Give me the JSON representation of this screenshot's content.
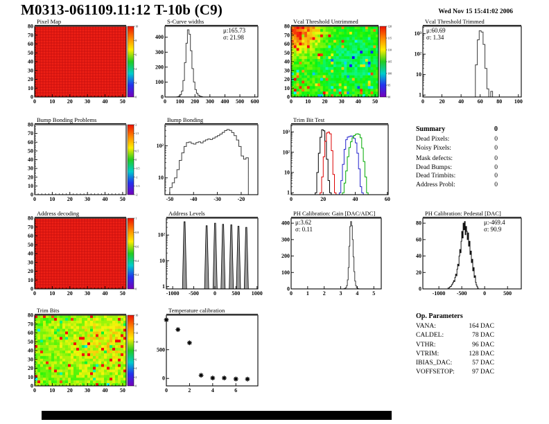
{
  "header": {
    "title": "M0313-061109.11:12 T-10b (C9)",
    "date": "Wed Nov 15 15:41:02 2006"
  },
  "summary": {
    "heading": "Summary",
    "heading_value": "0",
    "rows": [
      {
        "label": "Dead Pixels:",
        "value": "0"
      },
      {
        "label": "Noisy Pixels:",
        "value": "0"
      },
      {
        "label": "Mask defects:",
        "value": "0"
      },
      {
        "label": "Dead Bumps:",
        "value": "0"
      },
      {
        "label": "Dead Trimbits:",
        "value": "0"
      },
      {
        "label": "Address Probl:",
        "value": "0"
      }
    ]
  },
  "op_parameters": {
    "heading": "Op. Parameters",
    "rows": [
      {
        "label": "VANA:",
        "value": "164 DAC"
      },
      {
        "label": "CALDEL:",
        "value": "78 DAC"
      },
      {
        "label": "VTHR:",
        "value": "96 DAC"
      },
      {
        "label": "VTRIM:",
        "value": "128 DAC"
      },
      {
        "label": "IBIAS_DAC:",
        "value": "57 DAC"
      },
      {
        "label": "VOFFSETOP:",
        "value": "97 DAC"
      }
    ]
  },
  "chart_data": [
    {
      "id": "pixel-map",
      "title": "Pixel Map",
      "type": "heatmap_uniform",
      "frame": {
        "x": 50,
        "y": 38,
        "w": 132,
        "h": 102
      },
      "xrange": [
        0,
        52
      ],
      "xticks": [
        0,
        10,
        20,
        30,
        40,
        50
      ],
      "yrange": [
        0,
        80
      ],
      "yticks": [
        0,
        10,
        20,
        30,
        40,
        50,
        60,
        70,
        80
      ],
      "colorbar": {
        "labels": [
          "10",
          "8",
          "6",
          "4",
          "2",
          "0"
        ]
      }
    },
    {
      "id": "s-curve-widths",
      "title": "S-Curve widths",
      "type": "hist",
      "frame": {
        "x": 238,
        "y": 38,
        "w": 134,
        "h": 102
      },
      "xrange": [
        0,
        620
      ],
      "xticks": [
        0,
        100,
        200,
        300,
        400,
        500,
        600
      ],
      "yrange": [
        0,
        473
      ],
      "yticks": [
        0,
        100,
        200,
        300,
        400
      ],
      "bins": {
        "start": 80,
        "width": 10,
        "values": [
          2,
          6,
          15,
          40,
          110,
          230,
          360,
          450,
          420,
          310,
          190,
          100,
          50,
          25,
          12,
          6,
          3
        ]
      },
      "stats": [
        "μ:165.73",
        "σ: 21.98"
      ]
    },
    {
      "id": "vcal-threshold-untrimmed",
      "title": "Vcal Threshold Untrimmed",
      "type": "heatmap_noise",
      "frame": {
        "x": 420,
        "y": 38,
        "w": 126,
        "h": 102
      },
      "xrange": [
        0,
        52
      ],
      "xticks": [
        0,
        10,
        20,
        30,
        40,
        50
      ],
      "yrange": [
        0,
        80
      ],
      "yticks": [
        0,
        10,
        20,
        30,
        40,
        50,
        60,
        70,
        80
      ],
      "seed": 12,
      "base": 0.58,
      "noise": 0.07,
      "hot": 0.05,
      "cold": 0.04,
      "spots": [
        {
          "x": 0.05,
          "y": 0.05,
          "r": 0.22,
          "amt": 0.3
        },
        {
          "x": 0.68,
          "y": 0.45,
          "r": 0.3,
          "amt": -0.13
        }
      ],
      "colorbar": {
        "labels": [
          "120",
          "115",
          "110",
          "105",
          "100",
          "95",
          "90"
        ]
      }
    },
    {
      "id": "vcal-threshold-trimmed",
      "title": "Vcal Threshold Trimmed",
      "type": "hist",
      "frame": {
        "x": 610,
        "y": 38,
        "w": 142,
        "h": 102
      },
      "xrange": [
        0,
        103
      ],
      "xticks": [
        0,
        20,
        40,
        60,
        80,
        100
      ],
      "ylog": [
        0.8,
        2300
      ],
      "ylogticks": [
        [
          1,
          "1"
        ],
        [
          10,
          "10"
        ],
        [
          100,
          "10²"
        ],
        [
          1000,
          "10³"
        ]
      ],
      "bins": {
        "start": 55,
        "width": 2,
        "values": [
          30,
          500,
          1400,
          1200,
          300,
          20,
          2,
          0,
          1.5
        ]
      },
      "stats": [
        "μ:60.69",
        "σ: 1.34"
      ]
    },
    {
      "id": "bump-bonding-problems",
      "title": "Bump Bonding Problems",
      "type": "heatmap_empty",
      "frame": {
        "x": 50,
        "y": 180,
        "w": 132,
        "h": 101
      },
      "xrange": [
        0,
        52
      ],
      "xticks": [
        0,
        10,
        20,
        30,
        40,
        50
      ],
      "yrange": [
        0,
        80
      ],
      "yticks": [
        0,
        10,
        20,
        30,
        40,
        50,
        60,
        70,
        80
      ],
      "colorbar": {
        "labels": [
          "2",
          "1.5",
          "1",
          "0.5",
          "0",
          "-0.5",
          "-1",
          "-1.5",
          "-2"
        ]
      }
    },
    {
      "id": "bump-bonding",
      "title": "Bump Bonding",
      "type": "hist",
      "frame": {
        "x": 238,
        "y": 180,
        "w": 134,
        "h": 101
      },
      "xrange": [
        -52,
        -13
      ],
      "xticks": [
        -50,
        -40,
        -30,
        -20
      ],
      "ylog": [
        3,
        450
      ],
      "ylogticks": [
        [
          10,
          "10"
        ],
        [
          100,
          "10²"
        ]
      ],
      "bins": {
        "start": -50,
        "width": 1,
        "values": [
          5,
          7,
          10,
          18,
          35,
          60,
          95,
          125,
          130,
          118,
          112,
          125,
          132,
          122,
          138,
          152,
          162,
          156,
          172,
          188,
          205,
          230,
          260,
          295,
          320,
          298,
          255,
          205,
          150,
          95,
          48,
          38,
          42
        ]
      }
    },
    {
      "id": "trim-bit-test",
      "title": "Trim Bit Test",
      "type": "hist_multi",
      "frame": {
        "x": 420,
        "y": 180,
        "w": 140,
        "h": 101
      },
      "xrange": [
        0,
        60.5
      ],
      "xticks": [
        0,
        20,
        40,
        60
      ],
      "ylog": [
        0.8,
        2300
      ],
      "ylogticks": [
        [
          1,
          "1"
        ],
        [
          10,
          "10"
        ],
        [
          100,
          "10²"
        ],
        [
          1000,
          "10³"
        ]
      ],
      "series": [
        {
          "name": "trim-hist-black",
          "color": "#000000",
          "bins": {
            "start": 15,
            "width": 1,
            "values": [
              1,
              10,
              90,
              550,
              1300,
              1150,
              350,
              45,
              4,
              1
            ]
          }
        },
        {
          "name": "trim-hist-red",
          "color": "#dd0000",
          "bins": {
            "start": 18,
            "width": 1,
            "values": [
              1,
              6,
              60,
              350,
              900,
              1000,
              820,
              120,
              8,
              1
            ]
          }
        },
        {
          "name": "trim-hist-blue",
          "color": "#2222cc",
          "bins": {
            "start": 30,
            "width": 1,
            "values": [
              1,
              4,
              25,
              140,
              420,
              560,
              600,
              640,
              600,
              480,
              290,
              90,
              15,
              2,
              1
            ]
          }
        },
        {
          "name": "trim-hist-green",
          "color": "#00aa00",
          "bins": {
            "start": 32,
            "width": 1,
            "values": [
              1,
              3,
              12,
              60,
              170,
              330,
              520,
              680,
              780,
              820,
              760,
              520,
              160,
              35,
              6,
              1
            ]
          }
        }
      ]
    },
    {
      "id": "address-decoding",
      "title": "Address decoding",
      "type": "heatmap_uniform",
      "frame": {
        "x": 50,
        "y": 315,
        "w": 132,
        "h": 102
      },
      "xrange": [
        0,
        52
      ],
      "xticks": [
        0,
        10,
        20,
        30,
        40,
        50
      ],
      "yrange": [
        0,
        80
      ],
      "yticks": [
        0,
        10,
        20,
        30,
        40,
        50,
        60,
        70,
        80
      ],
      "colorbar": {
        "labels": [
          "1",
          "0.8",
          "0.6",
          "0.4",
          "0.2",
          "0"
        ]
      }
    },
    {
      "id": "address-levels",
      "title": "Address Levels",
      "type": "spikes",
      "frame": {
        "x": 240,
        "y": 315,
        "w": 132,
        "h": 102
      },
      "xrange": [
        -1150,
        1020
      ],
      "xticks": [
        -1000,
        -500,
        0,
        500,
        1000
      ],
      "ylog": [
        0.8,
        450
      ],
      "ylogticks": [
        [
          1,
          "1"
        ],
        [
          10,
          "10"
        ],
        [
          100,
          "10²"
        ]
      ],
      "spikes": [
        [
          -720,
          330
        ],
        [
          -195,
          230
        ],
        [
          5,
          290
        ],
        [
          195,
          260
        ],
        [
          390,
          250
        ],
        [
          560,
          220
        ],
        [
          745,
          200
        ]
      ]
    },
    {
      "id": "ph-calibration-gain",
      "title": "PH Calibration: Gain [DAC/ADC]",
      "type": "hist",
      "frame": {
        "x": 420,
        "y": 315,
        "w": 130,
        "h": 102
      },
      "xrange": [
        0,
        5.45
      ],
      "xticks": [
        0,
        1,
        2,
        3,
        4,
        5
      ],
      "yrange": [
        0,
        430
      ],
      "yticks": [
        0,
        100,
        200,
        300,
        400
      ],
      "bins": {
        "start": 3.2,
        "width": 0.05,
        "values": [
          2,
          4,
          8,
          20,
          55,
          130,
          260,
          380,
          410,
          385,
          300,
          195,
          105,
          48,
          20,
          8,
          3,
          1
        ]
      },
      "stats": [
        "μ:3.62",
        "σ: 0.11"
      ]
    },
    {
      "id": "ph-calibration-pedestal",
      "title": "PH Calibration: Pedestal [DAC]",
      "type": "hist",
      "jagged": true,
      "frame": {
        "x": 610,
        "y": 315,
        "w": 142,
        "h": 102
      },
      "xrange": [
        -1350,
        800
      ],
      "xticks": [
        -1000,
        -500,
        0,
        500
      ],
      "yrange": [
        0,
        86
      ],
      "yticks": [
        0,
        20,
        40,
        60,
        80
      ],
      "bins": {
        "start": -800,
        "width": 15,
        "values": [
          1,
          1,
          2,
          3,
          3,
          5,
          6,
          8,
          10,
          9,
          14,
          18,
          16,
          24,
          30,
          28,
          40,
          48,
          44,
          58,
          70,
          62,
          80,
          72,
          82,
          66,
          76,
          70,
          60,
          68,
          52,
          58,
          42,
          46,
          32,
          36,
          22,
          26,
          14,
          16,
          8,
          5,
          3,
          1
        ]
      },
      "stats": [
        "μ:-469.4",
        "σ: 90.9"
      ]
    },
    {
      "id": "trim-bits",
      "title": "Trim Bits",
      "type": "heatmap_noise",
      "frame": {
        "x": 50,
        "y": 455,
        "w": 132,
        "h": 102
      },
      "xrange": [
        0,
        52
      ],
      "xticks": [
        0,
        10,
        20,
        30,
        40,
        50
      ],
      "yrange": [
        0,
        80
      ],
      "yticks": [
        0,
        10,
        20,
        30,
        40,
        50,
        60,
        70,
        80
      ],
      "seed": 77,
      "base": 0.62,
      "noise": 0.07,
      "hot": 0.06,
      "cold": 0.02,
      "spots": [
        {
          "x": 0.75,
          "y": 0.35,
          "r": 0.38,
          "amt": 0.1
        }
      ],
      "colorbar": {
        "labels": [
          "16",
          "14",
          "12",
          "10",
          "8",
          "6",
          "4",
          "2",
          "0"
        ]
      }
    },
    {
      "id": "temperature-calibration",
      "title": "Temperature calibration",
      "type": "scatter_star",
      "frame": {
        "x": 240,
        "y": 455,
        "w": 132,
        "h": 102
      },
      "xrange": [
        0,
        7.9
      ],
      "xticks": [
        0,
        2,
        4,
        6
      ],
      "yrange": [
        -130,
        1100
      ],
      "yticks": [
        0,
        500
      ],
      "points": [
        [
          0,
          1020
        ],
        [
          1,
          850
        ],
        [
          2,
          620
        ],
        [
          3,
          55
        ],
        [
          4,
          8
        ],
        [
          5,
          8
        ],
        [
          6,
          -10
        ],
        [
          7,
          -12
        ]
      ]
    }
  ]
}
